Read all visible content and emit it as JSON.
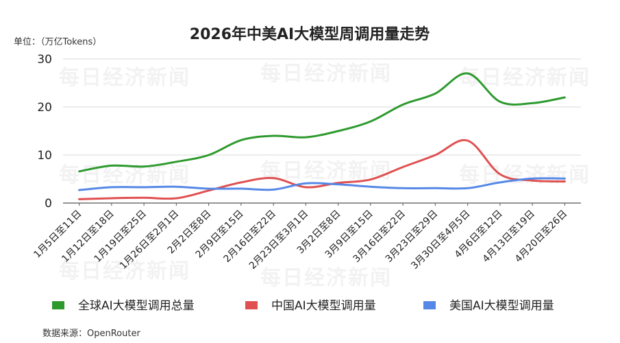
{
  "chart_data": {
    "type": "line",
    "title": "2026年中美AI大模型周调用量走势",
    "unit_label": "单位：（万亿Tokens）",
    "source": "数据来源：OpenRouter",
    "watermark": "每日经济新闻",
    "categories": [
      "1月5日至11日",
      "1月12日至18日",
      "1月19日至25日",
      "1月26日至2月1日",
      "2月2日至8日",
      "2月9日至15日",
      "2月16日至22日",
      "2月23日至3月1日",
      "3月2日至8日",
      "3月9日至15日",
      "3月16日至22日",
      "3月23日至29日",
      "3月30日至4月5日",
      "4月6日至12日",
      "4月13日至19日",
      "4月20日至26日"
    ],
    "yticks": [
      "0",
      "10",
      "20",
      "30"
    ],
    "ylim": [
      0,
      30
    ],
    "grid": true,
    "legend_position": "bottom",
    "series": [
      {
        "name": "全球AI大模型调用总量",
        "color": "#2e9a2e",
        "values": [
          6.6,
          7.8,
          7.6,
          8.6,
          10.0,
          13.1,
          14.0,
          13.7,
          15.0,
          17.0,
          20.5,
          22.8,
          27.0,
          21.1,
          20.8,
          22.0
        ]
      },
      {
        "name": "中国AI大模型调用量",
        "color": "#e05050",
        "values": [
          0.8,
          1.0,
          1.1,
          1.0,
          2.6,
          4.3,
          5.2,
          3.3,
          4.2,
          4.9,
          7.5,
          10.0,
          13.0,
          6.0,
          4.7,
          4.5
        ]
      },
      {
        "name": "美国AI大模型调用量",
        "color": "#5588e6",
        "values": [
          2.7,
          3.3,
          3.3,
          3.4,
          3.0,
          3.0,
          2.8,
          4.1,
          3.9,
          3.4,
          3.1,
          3.1,
          3.1,
          4.3,
          5.1,
          5.1
        ]
      }
    ]
  }
}
